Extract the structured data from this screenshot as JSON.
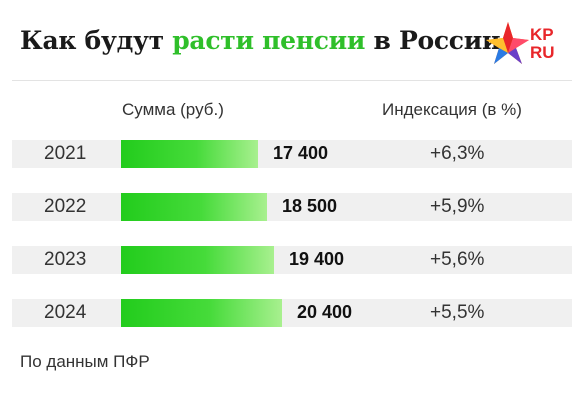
{
  "title": {
    "part1": "Как будут ",
    "accent": "расти пенсии",
    "part2": " в России"
  },
  "logo": {
    "top": "KP",
    "bottom": "RU"
  },
  "chart_data": {
    "type": "bar",
    "orientation": "horizontal",
    "columns": {
      "sum": "Сумма (руб.)",
      "index": "Индексация (в %)"
    },
    "categories": [
      "2021",
      "2022",
      "2023",
      "2024"
    ],
    "values": [
      17400,
      18500,
      19400,
      20400
    ],
    "value_labels": [
      "17 400",
      "18 500",
      "19 400",
      "20 400"
    ],
    "indexation": [
      "+6,3%",
      "+5,9%",
      "+5,6%",
      "+5,5%"
    ],
    "colors": {
      "bar": "#2fcf28",
      "accent": "#2fbf2a",
      "row_bg": "#f0f0f0"
    }
  },
  "source": "По данным ПФР"
}
